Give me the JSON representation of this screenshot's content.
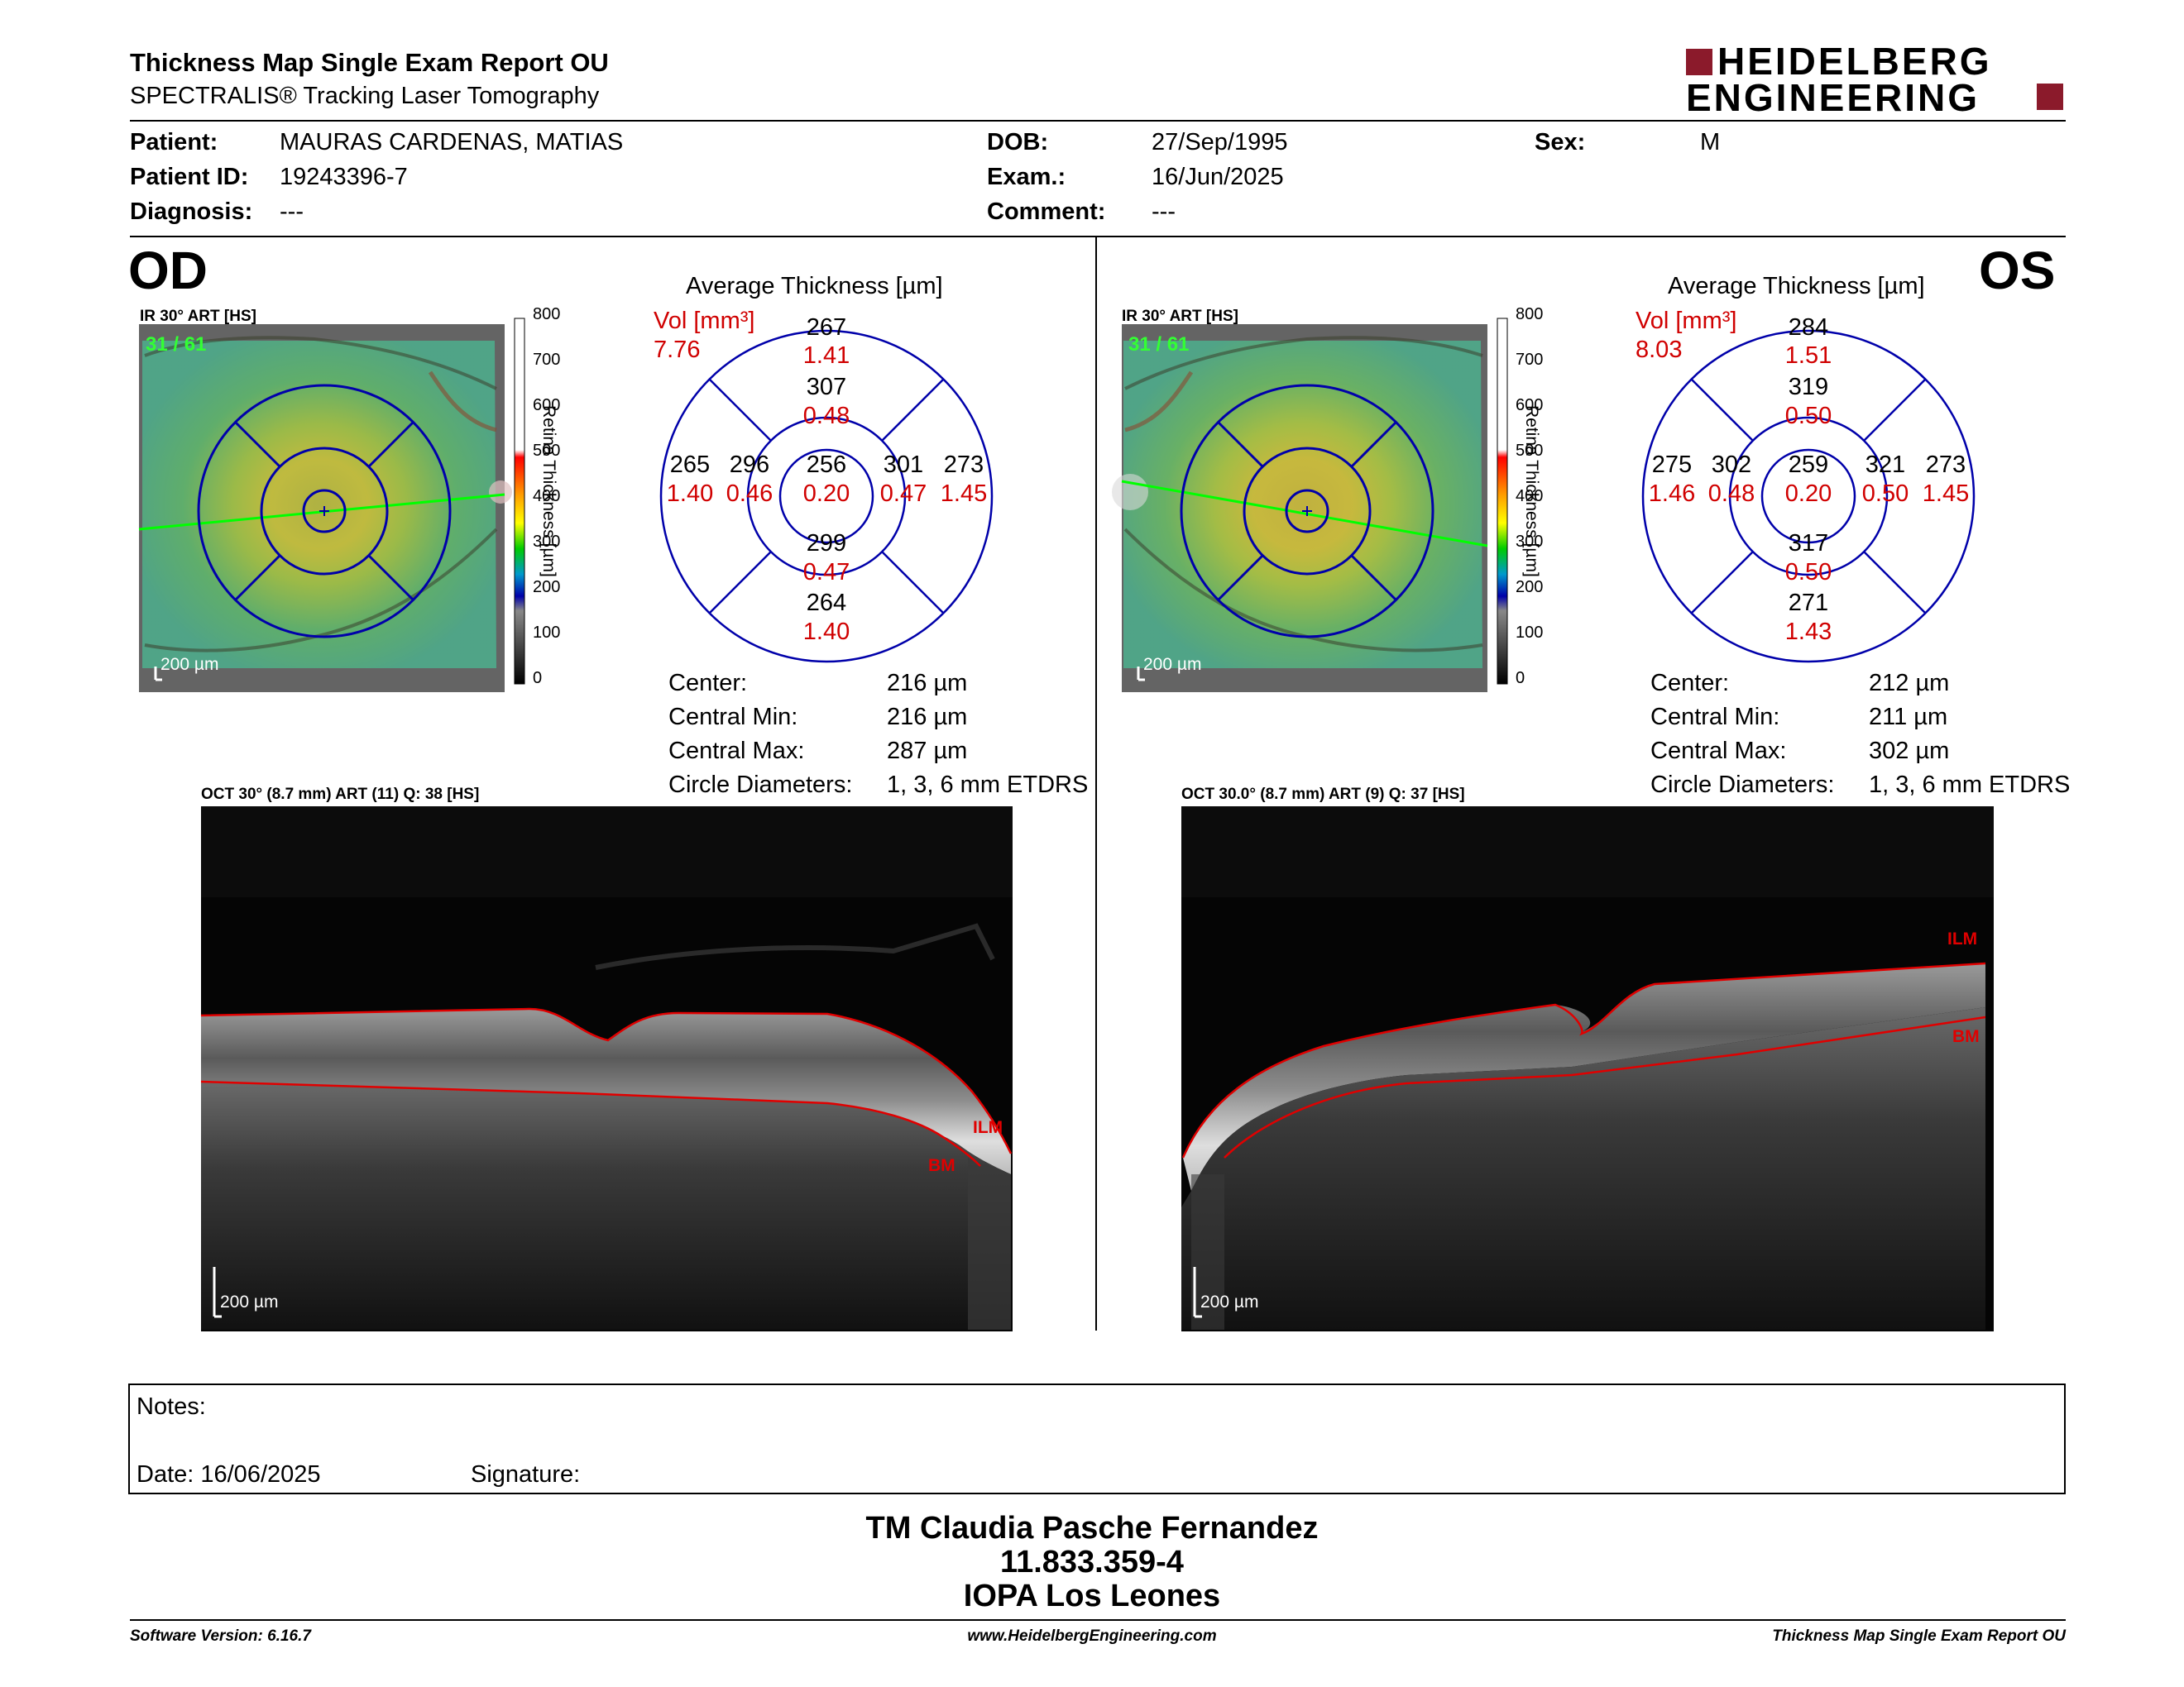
{
  "header": {
    "title": "Thickness Map Single Exam Report OU",
    "subtitle": "SPECTRALIS® Tracking Laser Tomography",
    "logo_line1": "HEIDELBERG",
    "logo_line2": "ENGINEERING"
  },
  "patient": {
    "patient_label": "Patient:",
    "patient_value": "MAURAS CARDENAS, MATIAS",
    "id_label": "Patient ID:",
    "id_value": "19243396-7",
    "diagnosis_label": "Diagnosis:",
    "diagnosis_value": "---",
    "dob_label": "DOB:",
    "dob_value": "27/Sep/1995",
    "exam_label": "Exam.:",
    "exam_value": "16/Jun/2025",
    "comment_label": "Comment:",
    "comment_value": "---",
    "sex_label": "Sex:",
    "sex_value": "M"
  },
  "scale": {
    "ticks": [
      "800",
      "700",
      "600",
      "500",
      "400",
      "300",
      "200",
      "100",
      "0"
    ],
    "axis_label": "Retina  Thickness [µm]"
  },
  "od": {
    "eye": "OD",
    "ir_label": "IR 30° ART [HS]",
    "ir_counter": "31 / 61",
    "ir_scalebar": "200 µm",
    "avg_title": "Average Thickness [µm]",
    "vol_label": "Vol [mm³]",
    "vol_value": "7.76",
    "sectors": {
      "center": [
        "256",
        "0.20"
      ],
      "inner_sup": [
        "307",
        "0.48"
      ],
      "inner_temp": [
        "296",
        "0.46"
      ],
      "inner_nas": [
        "301",
        "0.47"
      ],
      "inner_inf": [
        "299",
        "0.47"
      ],
      "outer_sup": [
        "267",
        "1.41"
      ],
      "outer_temp": [
        "265",
        "1.40"
      ],
      "outer_nas": [
        "273",
        "1.45"
      ],
      "outer_inf": [
        "264",
        "1.40"
      ]
    },
    "stats": {
      "center_label": "Center:",
      "center_value": "216 µm",
      "min_label": "Central Min:",
      "min_value": "216 µm",
      "max_label": "Central Max:",
      "max_value": "287 µm",
      "diam_label": "Circle Diameters:",
      "diam_value": "1, 3, 6 mm ETDRS"
    },
    "oct_label": "OCT 30° (8.7 mm) ART (11) Q: 38 [HS]",
    "oct_scalebar": "200 µm",
    "ilm": "ILM",
    "bm": "BM"
  },
  "os": {
    "eye": "OS",
    "ir_label": "IR 30° ART [HS]",
    "ir_counter": "31 / 61",
    "ir_scalebar": "200 µm",
    "avg_title": "Average Thickness [µm]",
    "vol_label": "Vol [mm³]",
    "vol_value": "8.03",
    "sectors": {
      "center": [
        "259",
        "0.20"
      ],
      "inner_sup": [
        "319",
        "0.50"
      ],
      "inner_temp": [
        "302",
        "0.48"
      ],
      "inner_nas": [
        "321",
        "0.50"
      ],
      "inner_inf": [
        "317",
        "0.50"
      ],
      "outer_sup": [
        "284",
        "1.51"
      ],
      "outer_temp": [
        "275",
        "1.46"
      ],
      "outer_nas": [
        "273",
        "1.45"
      ],
      "outer_inf": [
        "271",
        "1.43"
      ]
    },
    "stats": {
      "center_label": "Center:",
      "center_value": "212 µm",
      "min_label": "Central Min:",
      "min_value": "211 µm",
      "max_label": "Central Max:",
      "max_value": "302 µm",
      "diam_label": "Circle Diameters:",
      "diam_value": "1, 3, 6 mm ETDRS"
    },
    "oct_label": "OCT 30.0° (8.7 mm) ART (9) Q: 37 [HS]",
    "oct_scalebar": "200 µm",
    "ilm": "ILM",
    "bm": "BM"
  },
  "notes": {
    "notes_label": "Notes:",
    "date_label": "Date: 16/06/2025",
    "signature_label": "Signature:"
  },
  "signature_block": {
    "line1": "TM Claudia Pasche Fernandez",
    "line2": "11.833.359-4",
    "line3": "IOPA Los Leones"
  },
  "footer": {
    "version": "Software Version: 6.16.7",
    "website": "www.HeidelbergEngineering.com",
    "report": "Thickness Map Single Exam Report OU"
  }
}
